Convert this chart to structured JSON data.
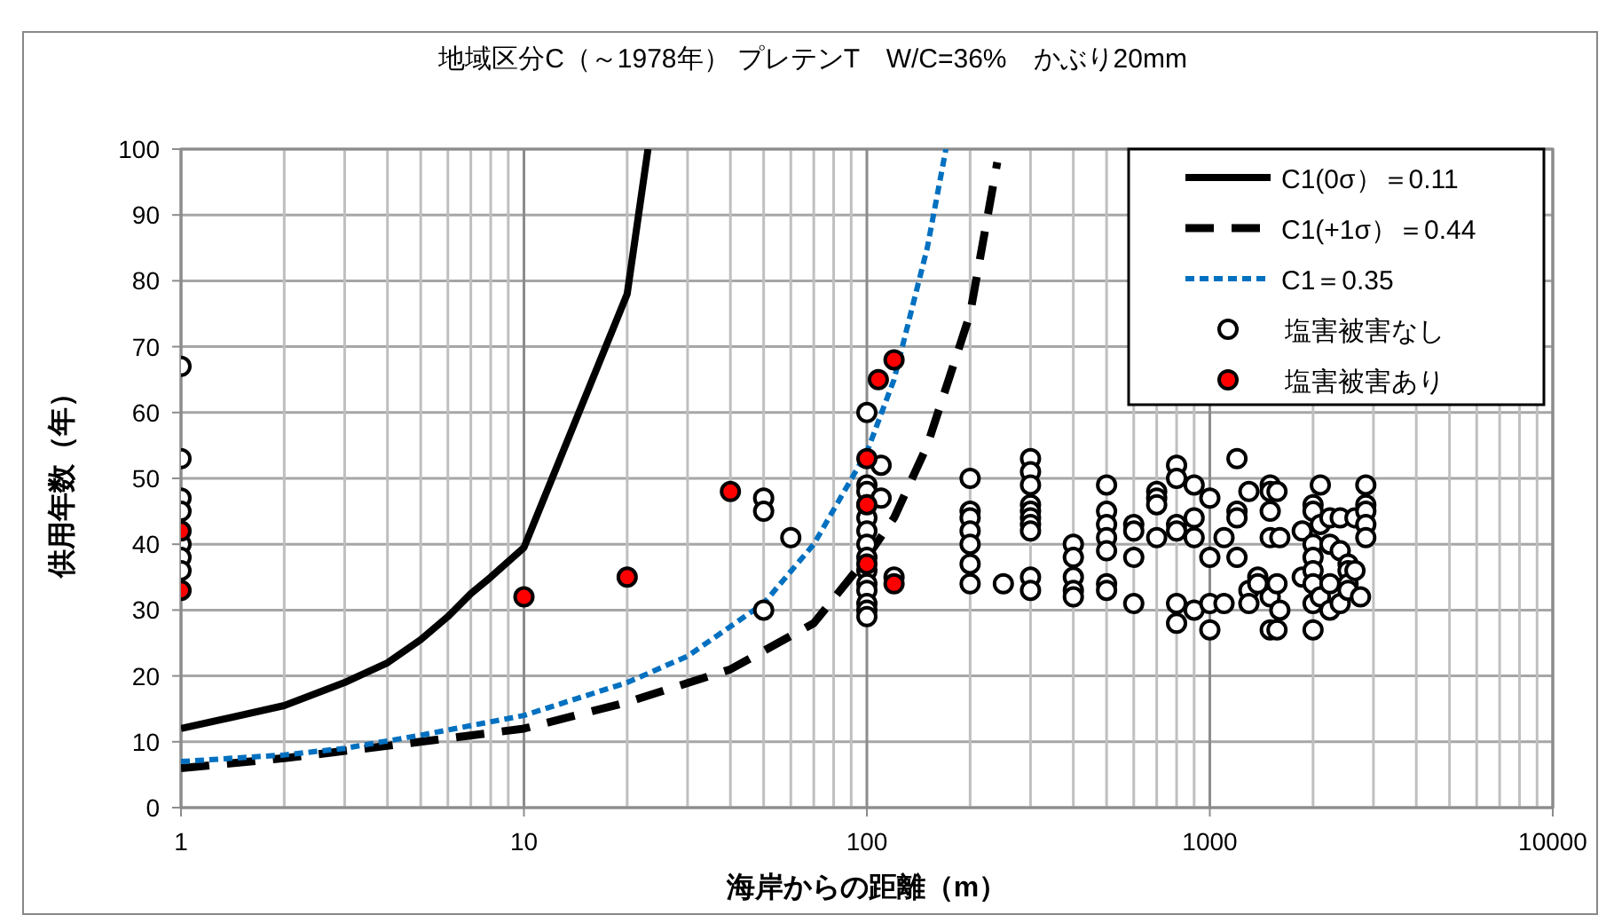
{
  "chart_data": {
    "type": "scatter",
    "title": "地域区分C（～1978年） プレテンT　W/C=36%　かぶり20mm",
    "xlabel": "海岸からの距離（m）",
    "ylabel": "供用年数（年）",
    "log": "x",
    "xlim": [
      1,
      10000
    ],
    "xticks": [
      1,
      10,
      100,
      1000,
      10000
    ],
    "ylim": [
      0,
      100
    ],
    "yticks": [
      0,
      10,
      20,
      30,
      40,
      50,
      60,
      70,
      80,
      90,
      100
    ],
    "grid": true,
    "legend": "top right",
    "series": [
      {
        "name": "C1(0σ）＝0.11",
        "type": "line",
        "line_style": "solid",
        "color": "#000000",
        "x": [
          1,
          2,
          3,
          4,
          5,
          6,
          7,
          8,
          10,
          20,
          23
        ],
        "values": [
          12,
          15.5,
          19,
          22,
          25.5,
          29,
          32.5,
          35,
          39.5,
          78,
          100
        ]
      },
      {
        "name": "C1(+1σ）＝0.44",
        "type": "line",
        "line_style": "dashed",
        "color": "#000000",
        "x": [
          1,
          2,
          5,
          10,
          20,
          40,
          70,
          100,
          120,
          150,
          200,
          240
        ],
        "values": [
          6,
          7.5,
          10,
          12,
          16,
          21,
          28,
          38,
          44,
          55,
          75,
          98
        ]
      },
      {
        "name": "C1＝0.35",
        "type": "line",
        "line_style": "dotted",
        "color": "#0070c0",
        "x": [
          1,
          2,
          3,
          5,
          10,
          20,
          30,
          50,
          70,
          100,
          120,
          150,
          170
        ],
        "values": [
          7,
          8,
          9,
          11,
          14,
          19,
          23,
          31,
          40,
          54,
          65,
          85,
          100
        ]
      },
      {
        "name": "塩害被害なし",
        "marker": "circle",
        "color": "#ffffff",
        "x": [
          1,
          1,
          1,
          1,
          1,
          1,
          1,
          50,
          50,
          50,
          60,
          100,
          100,
          100,
          100,
          100,
          100,
          100,
          100,
          100,
          100,
          100,
          100,
          100,
          100,
          110,
          110,
          120,
          200,
          200,
          200,
          200,
          200,
          200,
          200,
          250,
          300,
          300,
          300,
          300,
          300,
          300,
          300,
          300,
          300,
          300,
          400,
          400,
          400,
          400,
          400,
          500,
          500,
          500,
          500,
          500,
          500,
          500,
          600,
          600,
          600,
          600,
          700,
          700,
          700,
          700,
          800,
          800,
          800,
          800,
          800,
          800,
          900,
          900,
          900,
          900,
          1000,
          1000,
          1000,
          1000,
          1100,
          1100,
          1200,
          1200,
          1200,
          1200,
          1300,
          1300,
          1300,
          1380,
          1380,
          1500,
          1500,
          1500,
          1500,
          1500,
          1500,
          1570,
          1570,
          1570,
          1600,
          1600,
          1860,
          1860,
          2000,
          2000,
          2000,
          2000,
          2000,
          2000,
          2000,
          2000,
          2100,
          2100,
          2100,
          2240,
          2240,
          2240,
          2240,
          2400,
          2400,
          2400,
          2530,
          2530,
          2530,
          2530,
          2650,
          2650,
          2750,
          2850,
          2850,
          2850,
          2850,
          2850
        ],
        "values": [
          67,
          53,
          47,
          45,
          40,
          38,
          36,
          47,
          45,
          30,
          41,
          60,
          49,
          48,
          46,
          44,
          42,
          40,
          38,
          36,
          34,
          33,
          31,
          30,
          29,
          52,
          47,
          35,
          50,
          45,
          44,
          42,
          40,
          37,
          34,
          34,
          53,
          51,
          49,
          46,
          45,
          44,
          43,
          42,
          35,
          33,
          40,
          38,
          35,
          33,
          32,
          49,
          45,
          43,
          41,
          39,
          34,
          33,
          43,
          42,
          38,
          31,
          48,
          47,
          46,
          41,
          52,
          50,
          43,
          42,
          31,
          28,
          49,
          44,
          41,
          30,
          47,
          38,
          31,
          27,
          41,
          31,
          53,
          38,
          45,
          44,
          48,
          33,
          31,
          35,
          34,
          49,
          48,
          45,
          41,
          32,
          27,
          48,
          34,
          27,
          41,
          30,
          42,
          35,
          46,
          45,
          40,
          38,
          36,
          34,
          31,
          27,
          49,
          43,
          32,
          44,
          40,
          34,
          30,
          44,
          39,
          31,
          37,
          36,
          34,
          33,
          44,
          36,
          32,
          49,
          46,
          45,
          43,
          41
        ]
      },
      {
        "name": "塩害被害あり",
        "marker": "circle",
        "color": "#ff0000",
        "x": [
          1,
          1,
          10,
          20,
          40,
          100,
          100,
          100,
          108,
          120,
          120
        ],
        "values": [
          42,
          33,
          32,
          35,
          48,
          53,
          46,
          37,
          65,
          68,
          34
        ]
      }
    ]
  }
}
